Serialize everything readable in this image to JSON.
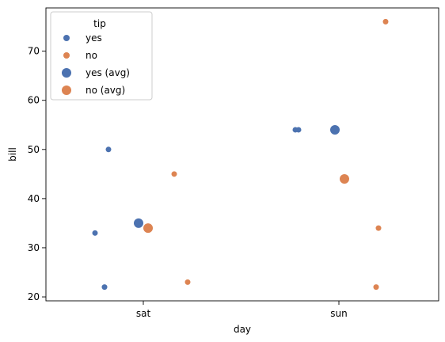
{
  "chart_data": {
    "type": "scatter",
    "xlabel": "day",
    "ylabel": "bill",
    "categories": [
      "sat",
      "sun"
    ],
    "ylim": [
      19.2,
      78.8
    ],
    "yticks": [
      20,
      30,
      40,
      50,
      60,
      70
    ],
    "grid": false,
    "legend": {
      "title": "tip",
      "placement": "upper-left",
      "entries": [
        "yes",
        "no",
        "yes (avg)",
        "no (avg)"
      ]
    },
    "colors": {
      "yes": "#4c72b0",
      "no": "#dd8452"
    },
    "series": [
      {
        "name": "yes",
        "points": [
          {
            "category": "sat",
            "value": 33
          },
          {
            "category": "sat",
            "value": 22
          },
          {
            "category": "sat",
            "value": 50
          },
          {
            "category": "sun",
            "value": 54
          },
          {
            "category": "sun",
            "value": 54
          }
        ]
      },
      {
        "name": "no",
        "points": [
          {
            "category": "sat",
            "value": 45
          },
          {
            "category": "sat",
            "value": 23
          },
          {
            "category": "sun",
            "value": 76
          },
          {
            "category": "sun",
            "value": 34
          },
          {
            "category": "sun",
            "value": 22
          }
        ]
      },
      {
        "name": "yes (avg)",
        "points": [
          {
            "category": "sat",
            "value": 35
          },
          {
            "category": "sun",
            "value": 54
          }
        ]
      },
      {
        "name": "no (avg)",
        "points": [
          {
            "category": "sat",
            "value": 34
          },
          {
            "category": "sun",
            "value": 44
          }
        ]
      }
    ]
  }
}
